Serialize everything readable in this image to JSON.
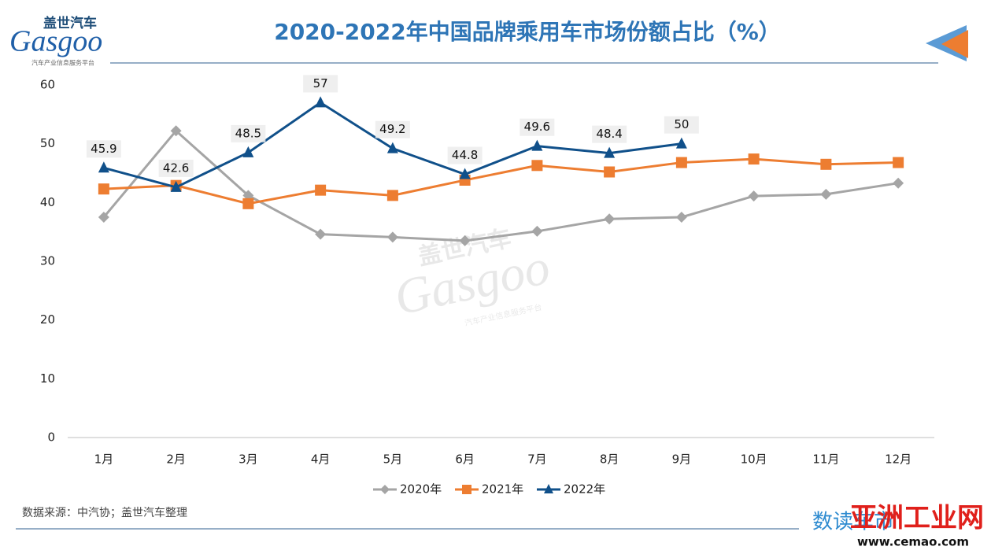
{
  "header": {
    "logo_cn": "盖世汽车",
    "logo_en": "Gasgoo",
    "logo_slogan": "汽车产业信息服务平台"
  },
  "chart_data": {
    "type": "line",
    "title": "2020-2022年中国品牌乘用车市场份额占比（%）",
    "categories": [
      "1月",
      "2月",
      "3月",
      "4月",
      "5月",
      "6月",
      "7月",
      "8月",
      "9月",
      "10月",
      "11月",
      "12月"
    ],
    "series": [
      {
        "name": "2020年",
        "color": "#a5a5a5",
        "marker": "diamond",
        "values": [
          37.5,
          52.2,
          41.2,
          34.6,
          34.1,
          33.5,
          35.1,
          37.2,
          37.5,
          41.1,
          41.4,
          43.3
        ]
      },
      {
        "name": "2021年",
        "color": "#ed7d31",
        "marker": "square",
        "values": [
          42.3,
          42.9,
          39.8,
          42.1,
          41.2,
          43.8,
          46.3,
          45.2,
          46.8,
          47.4,
          46.5,
          46.8
        ]
      },
      {
        "name": "2022年",
        "color": "#10508a",
        "marker": "triangle",
        "data_labels": true,
        "values": [
          45.9,
          42.6,
          48.5,
          57,
          49.2,
          44.8,
          49.6,
          48.4,
          50,
          null,
          null,
          null
        ]
      }
    ],
    "ylim": [
      0,
      60
    ],
    "yticks": [
      0,
      10,
      20,
      30,
      40,
      50,
      60
    ],
    "grid": false,
    "legend": "bottom"
  },
  "footer": {
    "source": "数据来源：中汽协；盖世汽车整理",
    "brand1": "数读车市",
    "brand2": "亚洲工业网",
    "site": "www.cemao.com"
  }
}
